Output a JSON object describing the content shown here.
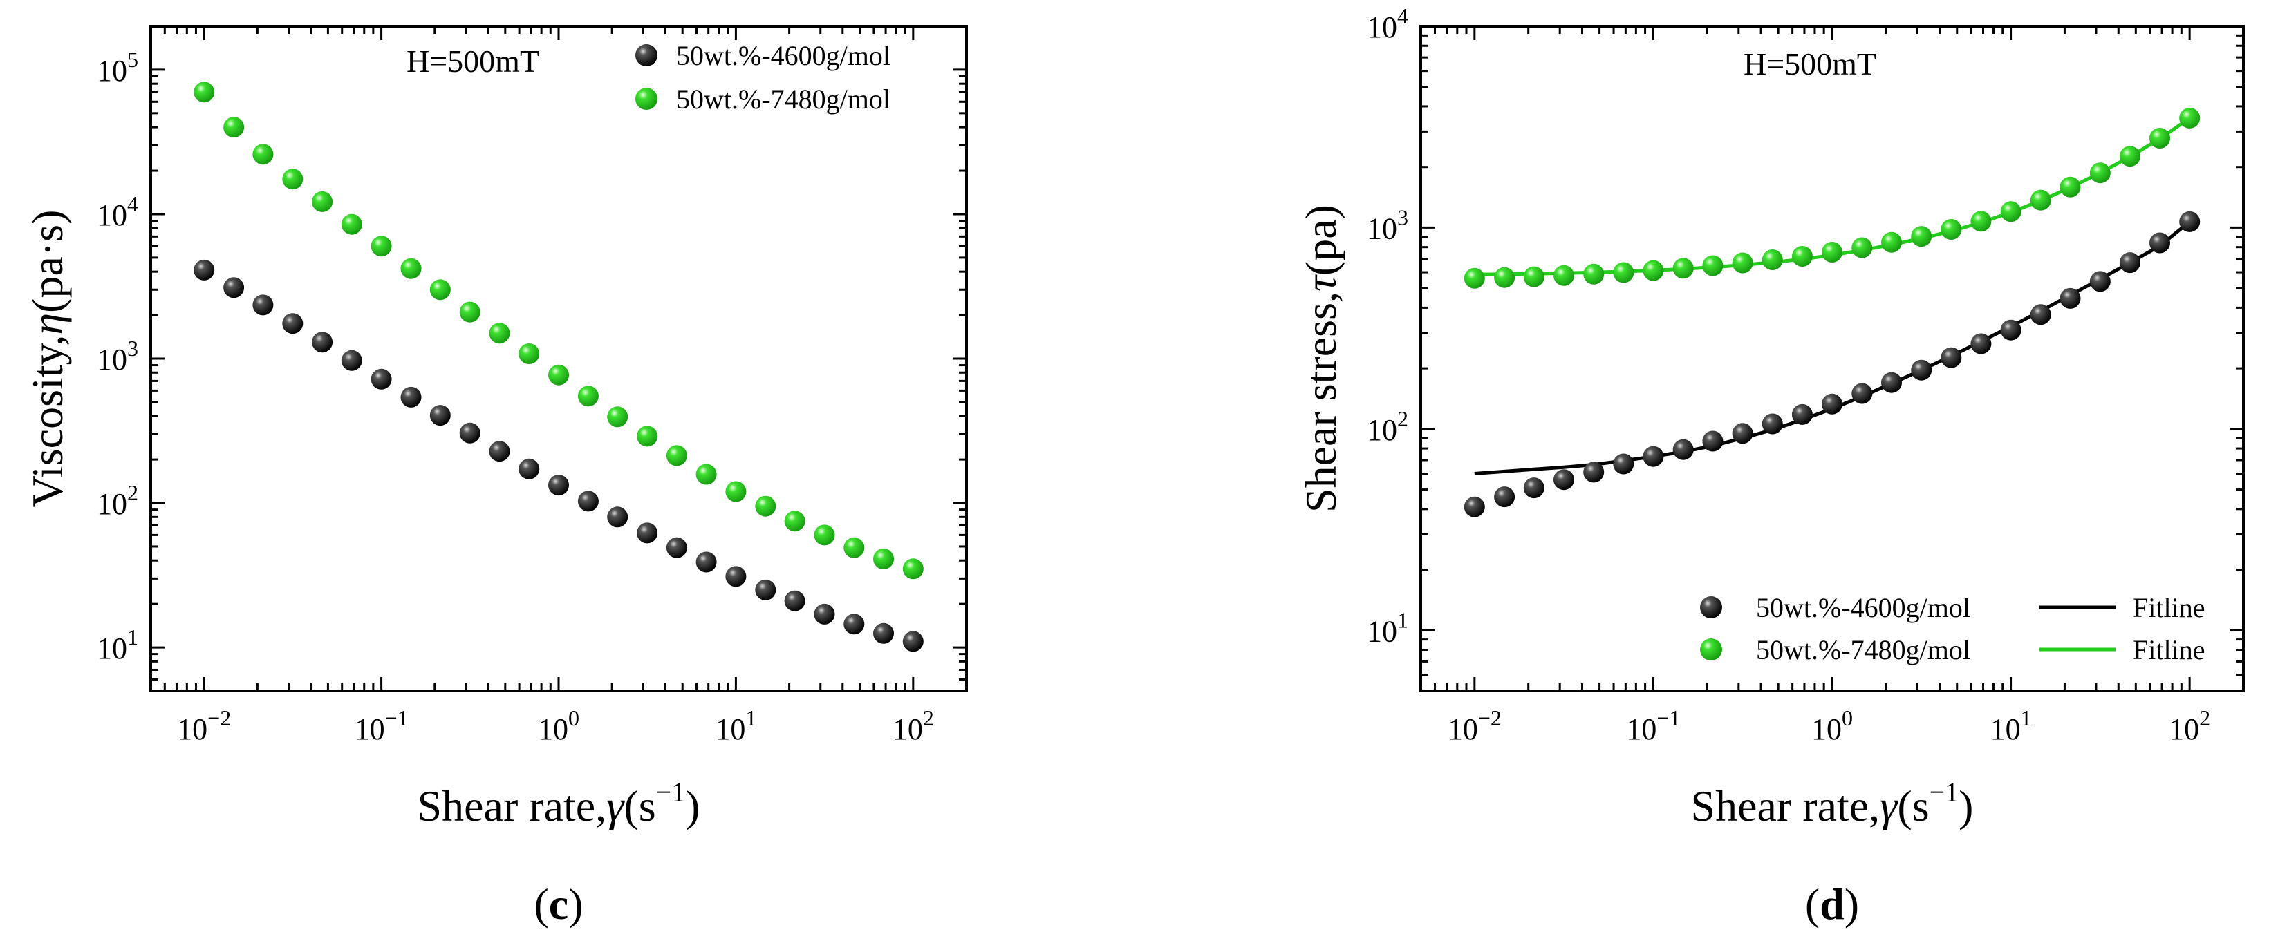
{
  "chart_data": [
    {
      "id": "c",
      "type": "scatter",
      "caption": "c",
      "annotation": "H=500mT",
      "xlabel": "Shear rate,",
      "xlabel_symbol": "γ",
      "xlabel_unit_pre": "(s",
      "xlabel_unit_exp": "−1",
      "xlabel_unit_post": ")",
      "ylabel": "Viscosity,",
      "ylabel_symbol": "η",
      "ylabel_unit": "(pa·s)",
      "xscale": "log",
      "yscale": "log",
      "xlim": [
        0.005,
        200
      ],
      "ylim": [
        5,
        200000
      ],
      "xticks": [
        {
          "base": "10",
          "exp": "−2",
          "v": 0.01
        },
        {
          "base": "10",
          "exp": "−1",
          "v": 0.1
        },
        {
          "base": "10",
          "exp": "0",
          "v": 1
        },
        {
          "base": "10",
          "exp": "1",
          "v": 10
        },
        {
          "base": "10",
          "exp": "2",
          "v": 100
        }
      ],
      "yticks": [
        {
          "base": "10",
          "exp": "1",
          "v": 10
        },
        {
          "base": "10",
          "exp": "2",
          "v": 100
        },
        {
          "base": "10",
          "exp": "3",
          "v": 1000
        },
        {
          "base": "10",
          "exp": "4",
          "v": 10000
        },
        {
          "base": "10",
          "exp": "5",
          "v": 100000
        }
      ],
      "legend_position": "top-right",
      "series": [
        {
          "name": "50wt.%-4600g/mol",
          "color": "#111111",
          "marker": "sphere",
          "x": [
            0.01,
            0.0147,
            0.0215,
            0.0316,
            0.0464,
            0.0681,
            0.1,
            0.147,
            0.215,
            0.316,
            0.464,
            0.681,
            1,
            1.47,
            2.15,
            3.16,
            4.64,
            6.81,
            10,
            14.7,
            21.5,
            31.6,
            46.4,
            68.1,
            100
          ],
          "y": [
            4100,
            3100,
            2350,
            1750,
            1300,
            970,
            720,
            540,
            405,
            305,
            228,
            172,
            133,
            103,
            80,
            62,
            49,
            39,
            31,
            25,
            21,
            17,
            14.5,
            12.5,
            11
          ]
        },
        {
          "name": "50wt.%-7480g/mol",
          "color": "#22cc1a",
          "marker": "sphere",
          "x": [
            0.01,
            0.0147,
            0.0215,
            0.0316,
            0.0464,
            0.0681,
            0.1,
            0.147,
            0.215,
            0.316,
            0.464,
            0.681,
            1,
            1.47,
            2.15,
            3.16,
            4.64,
            6.81,
            10,
            14.7,
            21.5,
            31.6,
            46.4,
            68.1,
            100
          ],
          "y": [
            70000,
            40000,
            26000,
            17500,
            12200,
            8500,
            6000,
            4200,
            3000,
            2100,
            1500,
            1080,
            770,
            550,
            395,
            290,
            213,
            158,
            120,
            95,
            75,
            60,
            49,
            41,
            35
          ]
        }
      ]
    },
    {
      "id": "d",
      "type": "scatter",
      "caption": "d",
      "annotation": "H=500mT",
      "xlabel": "Shear rate,",
      "xlabel_symbol": "γ",
      "xlabel_unit_pre": "(s",
      "xlabel_unit_exp": "−1",
      "xlabel_unit_post": ")",
      "ylabel": "Shear stress,",
      "ylabel_symbol": "τ",
      "ylabel_unit": "(pa)",
      "xscale": "log",
      "yscale": "log",
      "xlim": [
        0.005,
        200
      ],
      "ylim": [
        5,
        10000
      ],
      "xticks": [
        {
          "base": "10",
          "exp": "−2",
          "v": 0.01
        },
        {
          "base": "10",
          "exp": "−1",
          "v": 0.1
        },
        {
          "base": "10",
          "exp": "0",
          "v": 1
        },
        {
          "base": "10",
          "exp": "1",
          "v": 10
        },
        {
          "base": "10",
          "exp": "2",
          "v": 100
        }
      ],
      "yticks": [
        {
          "base": "10",
          "exp": "1",
          "v": 10
        },
        {
          "base": "10",
          "exp": "2",
          "v": 100
        },
        {
          "base": "10",
          "exp": "3",
          "v": 1000
        },
        {
          "base": "10",
          "exp": "4",
          "v": 10000
        }
      ],
      "legend_position": "bottom-right",
      "legend_fit_label": "Fitline",
      "series": [
        {
          "name": "50wt.%-4600g/mol",
          "color": "#111111",
          "marker": "sphere",
          "x": [
            0.01,
            0.0147,
            0.0215,
            0.0316,
            0.0464,
            0.0681,
            0.1,
            0.147,
            0.215,
            0.316,
            0.464,
            0.681,
            1,
            1.47,
            2.15,
            3.16,
            4.64,
            6.81,
            10,
            14.7,
            21.5,
            31.6,
            46.4,
            68.1,
            100
          ],
          "y": [
            41,
            46,
            51,
            56,
            61,
            67,
            73,
            79,
            87,
            95,
            106,
            118,
            133,
            150,
            170,
            196,
            226,
            265,
            310,
            370,
            445,
            540,
            670,
            840,
            1070
          ],
          "fit_color": "#000000",
          "fit_y": [
            60,
            61.5,
            63,
            64.5,
            66.5,
            69.5,
            73,
            77,
            82.5,
            90,
            99,
            111,
            126,
            145,
            168,
            196,
            230,
            272,
            323,
            385,
            462,
            555,
            670,
            810,
            1070
          ]
        },
        {
          "name": "50wt.%-7480g/mol",
          "color": "#22cc1a",
          "marker": "sphere",
          "x": [
            0.01,
            0.0147,
            0.0215,
            0.0316,
            0.0464,
            0.0681,
            0.1,
            0.147,
            0.215,
            0.316,
            0.464,
            0.681,
            1,
            1.47,
            2.15,
            3.16,
            4.64,
            6.81,
            10,
            14.7,
            21.5,
            31.6,
            46.4,
            68.1,
            100
          ],
          "y": [
            560,
            565,
            570,
            578,
            587,
            598,
            612,
            628,
            647,
            668,
            692,
            720,
            755,
            795,
            845,
            905,
            980,
            1075,
            1200,
            1370,
            1590,
            1870,
            2260,
            2780,
            3500
          ],
          "fit_color": "#22cc1a",
          "fit_y": [
            585,
            587,
            590,
            594,
            599,
            605,
            613,
            623,
            636,
            652,
            672,
            697,
            730,
            772,
            822,
            884,
            960,
            1060,
            1190,
            1360,
            1580,
            1870,
            2250,
            2760,
            3500
          ]
        }
      ]
    }
  ]
}
